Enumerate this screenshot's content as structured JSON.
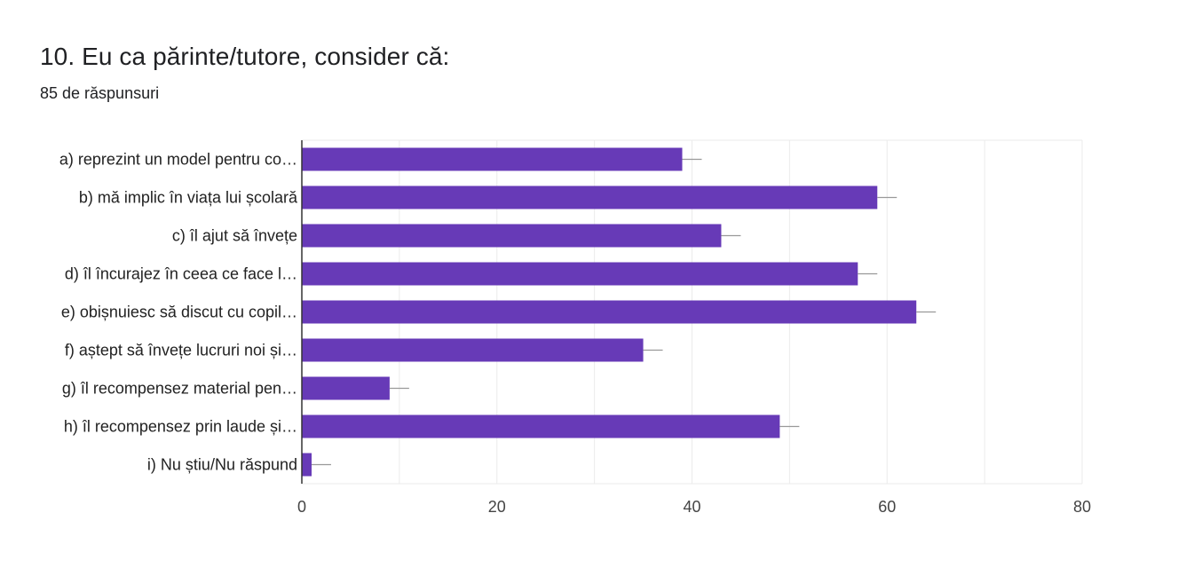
{
  "question": {
    "title": "10. Eu ca părinte/tutore, consider că:",
    "responses": "85 de răspunsuri"
  },
  "colors": {
    "bar": "#673ab7",
    "grid": "#ebebeb",
    "axis": "#333333",
    "error_bar": "#999999"
  },
  "chart_data": {
    "type": "bar",
    "orientation": "horizontal",
    "categories": [
      "a) reprezint un model pentru co…",
      "b) mă implic în viața lui școlară",
      "c) îl ajut să învețe",
      "d) îl încurajez în ceea ce face l…",
      "e) obișnuiesc să discut cu copil…",
      "f) aștept să învețe lucruri noi și…",
      "g) îl recompensez material pen…",
      "h) îl recompensez prin laude și…",
      "i) Nu știu/Nu răspund"
    ],
    "values": [
      39,
      59,
      43,
      57,
      63,
      35,
      9,
      49,
      1
    ],
    "error": [
      2,
      2,
      2,
      2,
      2,
      2,
      2,
      2,
      2
    ],
    "xlim": [
      0,
      80
    ],
    "xticks": [
      "0",
      "20",
      "40",
      "60",
      "80"
    ],
    "grid": true,
    "minor_grid_step": 10
  }
}
